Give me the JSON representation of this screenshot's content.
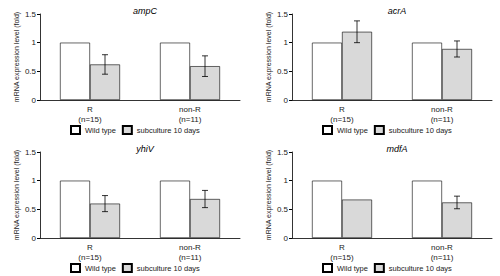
{
  "chart_data": [
    {
      "type": "bar",
      "title": "ampC",
      "ylabel": "mRNA expression level (fold)",
      "categories": [
        "R\n(n=15)",
        "non-R\n(n=11)"
      ],
      "series": [
        {
          "name": "Wild type",
          "color": "#ffffff",
          "values": [
            1,
            1
          ]
        },
        {
          "name": "subculture 10 days",
          "color": "#d9d9d9",
          "values": [
            0.62,
            0.59
          ],
          "errors": [
            0.17,
            0.18
          ]
        }
      ],
      "ylim": [
        0,
        1.5
      ],
      "yticks": [
        0,
        0.5,
        1,
        1.5
      ],
      "grid": false,
      "legend": "bottom"
    },
    {
      "type": "bar",
      "title": "acrA",
      "ylabel": "mRNA expression level (fold)",
      "categories": [
        "R\n(n=15)",
        "non-R\n(n=11)"
      ],
      "series": [
        {
          "name": "Wild type",
          "color": "#ffffff",
          "values": [
            1,
            1
          ]
        },
        {
          "name": "subculture 10 days",
          "color": "#d9d9d9",
          "values": [
            1.19,
            0.89
          ],
          "errors": [
            0.19,
            0.14
          ]
        }
      ],
      "ylim": [
        0,
        1.5
      ],
      "yticks": [
        0,
        0.5,
        1,
        1.5
      ],
      "grid": false,
      "legend": "bottom"
    },
    {
      "type": "bar",
      "title": "yhiV",
      "ylabel": "mRNA expression level (fold)",
      "categories": [
        "R\n(n=15)",
        "non-R\n(n=11)"
      ],
      "series": [
        {
          "name": "Wild type",
          "color": "#ffffff",
          "values": [
            1,
            1
          ]
        },
        {
          "name": "subculture 10 days",
          "color": "#d9d9d9",
          "values": [
            0.6,
            0.68
          ],
          "errors": [
            0.14,
            0.15
          ]
        }
      ],
      "ylim": [
        0,
        1.5
      ],
      "yticks": [
        0,
        0.5,
        1,
        1.5
      ],
      "grid": false,
      "legend": "bottom"
    },
    {
      "type": "bar",
      "title": "mdfA",
      "ylabel": "mRNA expression level (fold)",
      "categories": [
        "R\n(n=15)",
        "non-R\n(n=11)"
      ],
      "series": [
        {
          "name": "Wild type",
          "color": "#ffffff",
          "values": [
            1,
            1
          ]
        },
        {
          "name": "subculture 10 days",
          "color": "#d9d9d9",
          "values": [
            0.67,
            0.62
          ],
          "errors": [
            null,
            0.11
          ]
        }
      ],
      "ylim": [
        0,
        1.5
      ],
      "yticks": [
        0,
        0.5,
        1,
        1.5
      ],
      "grid": false,
      "legend": "bottom"
    }
  ]
}
